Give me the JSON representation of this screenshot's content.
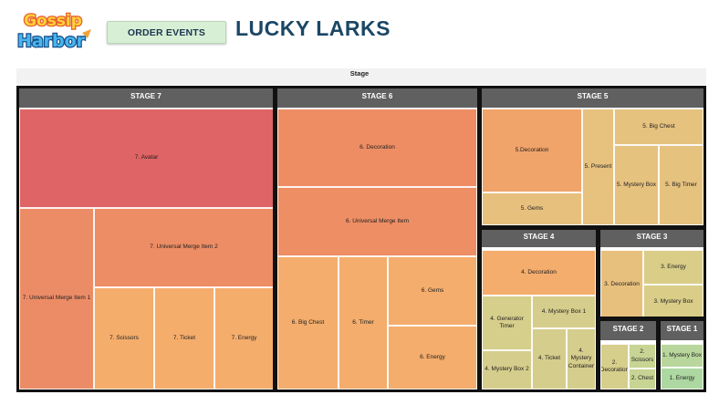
{
  "header": {
    "logo_text": [
      "Gossip",
      "Harbor"
    ],
    "order_events_label": "ORDER EVENTS",
    "title": "LUCKY LARKS"
  },
  "chart_data": {
    "type": "treemap",
    "title": "Stage",
    "groups": [
      {
        "name": "STAGE 7",
        "items": [
          {
            "label": "7. Avatar",
            "color": "#df6465"
          },
          {
            "label": "7. Universal Merge Item 1",
            "color": "#ec8c66"
          },
          {
            "label": "7. Universal Merge Item 2",
            "color": "#ed8d65"
          },
          {
            "label": "7. Scissors",
            "color": "#f5ad6c"
          },
          {
            "label": "7. Ticket",
            "color": "#f5ad6c"
          },
          {
            "label": "7. Energy",
            "color": "#f5ad6c"
          }
        ]
      },
      {
        "name": "STAGE 6",
        "items": [
          {
            "label": "6. Decoration",
            "color": "#ee8d64"
          },
          {
            "label": "6. Universal Merge Item",
            "color": "#ee8e65"
          },
          {
            "label": "6. Big Chest",
            "color": "#f4ad6c"
          },
          {
            "label": "6. Timer",
            "color": "#f4ad6c"
          },
          {
            "label": "6. Gems",
            "color": "#f4ad6c"
          },
          {
            "label": "6. Energy",
            "color": "#f4ad6c"
          }
        ]
      },
      {
        "name": "STAGE 5",
        "items": [
          {
            "label": "5.Decoration",
            "color": "#f1a46a"
          },
          {
            "label": "5. Gems",
            "color": "#e8c07e"
          },
          {
            "label": "5. Present",
            "color": "#e7c17e"
          },
          {
            "label": "5. Big Chest",
            "color": "#e6c27f"
          },
          {
            "label": "5. Mystery Box",
            "color": "#e6c27f"
          },
          {
            "label": "5. Big Timer",
            "color": "#e6c27f"
          }
        ]
      },
      {
        "name": "STAGE 4",
        "items": [
          {
            "label": "4. Decoration",
            "color": "#f4ad6c"
          },
          {
            "label": "4. Generator Timer",
            "color": "#d6ce8b"
          },
          {
            "label": "4. Mystery Box 1",
            "color": "#d5cd8c"
          },
          {
            "label": "4. Mystery Box 2",
            "color": "#d5cd8c"
          },
          {
            "label": "4. Ticket",
            "color": "#d5cd8c"
          },
          {
            "label": "4. Mystery Container",
            "color": "#d5cd8c"
          }
        ]
      },
      {
        "name": "STAGE 3",
        "items": [
          {
            "label": "3. Decoration",
            "color": "#e8c07e"
          },
          {
            "label": "3. Energy",
            "color": "#d9cd88"
          },
          {
            "label": "3. Mystery Box",
            "color": "#d9cd88"
          }
        ]
      },
      {
        "name": "STAGE 2",
        "items": [
          {
            "label": "2. Decoration",
            "color": "#d6ce8b"
          },
          {
            "label": "2. Scissors",
            "color": "#c7d493"
          },
          {
            "label": "2. Chest",
            "color": "#c7d493"
          }
        ]
      },
      {
        "name": "STAGE 1",
        "items": [
          {
            "label": "1. Mystery Box",
            "color": "#b9d79d"
          },
          {
            "label": "1. Energy",
            "color": "#aed8a1"
          }
        ]
      }
    ]
  }
}
